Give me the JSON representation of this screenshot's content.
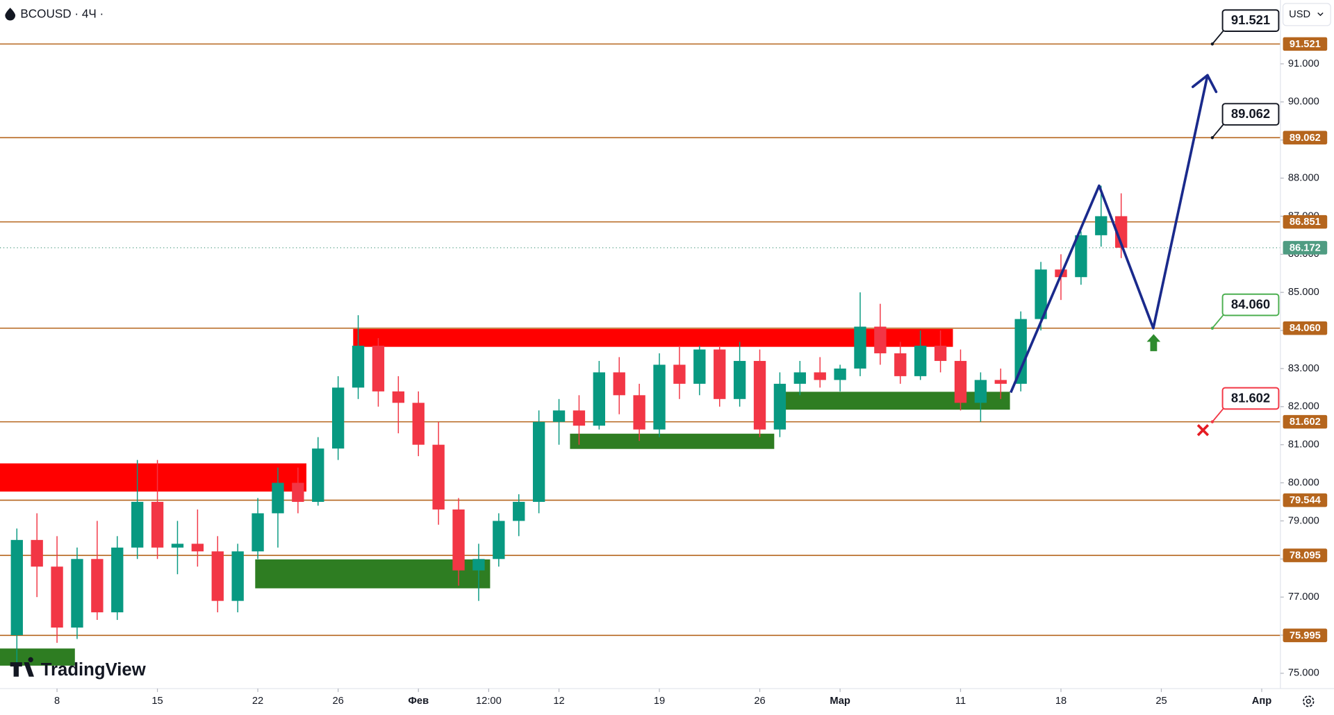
{
  "header": {
    "title": "BCOUSD · 4Ч ·",
    "currency": "USD"
  },
  "watermark": "TradingView",
  "chart_data": {
    "type": "candlestick",
    "x": [
      -2,
      -1,
      0,
      1,
      2,
      3,
      4,
      5,
      6,
      7,
      8,
      9,
      10,
      11,
      12,
      13,
      14,
      15,
      16,
      17,
      18,
      19,
      20,
      21,
      22,
      23,
      24,
      25,
      26,
      27,
      28,
      29,
      30,
      31,
      32,
      33,
      34,
      35,
      36,
      37,
      38,
      39,
      40,
      41,
      42,
      43,
      44,
      45,
      46,
      47,
      48,
      49,
      50,
      51,
      52,
      53
    ],
    "open": [
      76.0,
      78.5,
      77.8,
      76.2,
      78.0,
      76.6,
      78.3,
      79.5,
      78.3,
      78.4,
      78.2,
      76.9,
      78.2,
      79.2,
      80.0,
      79.5,
      80.9,
      82.5,
      83.6,
      82.4,
      82.1,
      81.0,
      79.3,
      77.7,
      78.0,
      79.0,
      79.5,
      81.6,
      81.9,
      81.5,
      82.9,
      82.3,
      81.4,
      83.1,
      82.6,
      83.5,
      82.2,
      83.2,
      81.4,
      82.6,
      82.9,
      82.7,
      83.0,
      84.1,
      83.4,
      82.8,
      83.6,
      83.2,
      82.1,
      82.7,
      82.6,
      84.3,
      85.6,
      85.4,
      86.5,
      87.0
    ],
    "high": [
      78.8,
      79.2,
      78.6,
      78.3,
      79.0,
      78.6,
      80.6,
      80.6,
      79.0,
      79.3,
      78.6,
      78.4,
      79.6,
      80.4,
      80.4,
      81.2,
      82.8,
      84.4,
      83.8,
      82.8,
      82.4,
      81.6,
      79.6,
      78.4,
      79.2,
      79.7,
      81.9,
      82.2,
      82.3,
      83.2,
      83.3,
      82.6,
      83.4,
      83.6,
      83.6,
      83.6,
      83.7,
      83.5,
      82.9,
      83.2,
      83.3,
      83.1,
      85.0,
      84.7,
      83.7,
      84.0,
      84.0,
      83.5,
      82.9,
      83.0,
      84.5,
      85.8,
      86.0,
      86.6,
      87.8,
      87.6
    ],
    "low": [
      75.2,
      77.0,
      75.8,
      75.9,
      76.4,
      76.4,
      78.0,
      78.0,
      77.6,
      77.8,
      76.6,
      76.6,
      78.0,
      78.3,
      79.2,
      79.4,
      80.6,
      82.2,
      82.0,
      81.3,
      80.7,
      78.9,
      77.3,
      76.9,
      77.8,
      78.6,
      79.2,
      81.0,
      81.0,
      81.4,
      81.8,
      81.1,
      81.2,
      82.2,
      82.3,
      82.0,
      82.0,
      81.2,
      81.2,
      82.3,
      82.5,
      82.4,
      82.8,
      83.1,
      82.6,
      82.7,
      82.9,
      81.9,
      81.6,
      82.2,
      82.4,
      84.0,
      84.8,
      85.2,
      86.2,
      85.9
    ],
    "close": [
      78.5,
      77.8,
      76.2,
      78.0,
      76.6,
      78.3,
      79.5,
      78.3,
      78.4,
      78.2,
      76.9,
      78.2,
      79.2,
      80.0,
      79.5,
      80.9,
      82.5,
      83.6,
      82.4,
      82.1,
      81.0,
      79.3,
      77.7,
      78.0,
      79.0,
      79.5,
      81.6,
      81.9,
      81.5,
      82.9,
      82.3,
      81.4,
      83.1,
      82.6,
      83.5,
      82.2,
      83.2,
      81.4,
      82.6,
      82.9,
      82.7,
      83.0,
      84.1,
      83.4,
      82.8,
      83.6,
      83.2,
      82.1,
      82.7,
      82.6,
      84.3,
      85.6,
      85.4,
      86.5,
      87.0,
      86.172
    ],
    "up_color": "#089981",
    "down_color": "#f23645",
    "xlim": [
      -2.84,
      60.93
    ],
    "xticks": [
      {
        "value": 0,
        "label": "8"
      },
      {
        "value": 5,
        "label": "15"
      },
      {
        "value": 10,
        "label": "22"
      },
      {
        "value": 14,
        "label": "26"
      },
      {
        "value": 18,
        "label": "Фев"
      },
      {
        "value": 21.5,
        "label": "12:00"
      },
      {
        "value": 25,
        "label": "12"
      },
      {
        "value": 30,
        "label": "19"
      },
      {
        "value": 35,
        "label": "26"
      },
      {
        "value": 39,
        "label": "Мар"
      },
      {
        "value": 45,
        "label": "11"
      },
      {
        "value": 50,
        "label": "18"
      },
      {
        "value": 55,
        "label": "25"
      },
      {
        "value": 60,
        "label": "Апр"
      }
    ],
    "ylim": [
      74.598,
      92.674
    ],
    "yticks": [
      {
        "value": 75,
        "label": "75.000"
      },
      {
        "value": 76,
        "label": "76.000"
      },
      {
        "value": 77,
        "label": "77.000"
      },
      {
        "value": 78,
        "label": "78.000"
      },
      {
        "value": 79,
        "label": "79.000"
      },
      {
        "value": 80,
        "label": "80.000"
      },
      {
        "value": 81,
        "label": "81.000"
      },
      {
        "value": 82,
        "label": "82.000"
      },
      {
        "value": 83,
        "label": "83.000"
      },
      {
        "value": 84,
        "label": "84.000"
      },
      {
        "value": 85,
        "label": "85.000"
      },
      {
        "value": 86,
        "label": "86.000"
      },
      {
        "value": 87,
        "label": "87.000"
      },
      {
        "value": 88,
        "label": "88.000"
      },
      {
        "value": 89,
        "label": "89.000"
      },
      {
        "value": 90,
        "label": "90.000"
      },
      {
        "value": 91,
        "label": "91.000"
      }
    ],
    "grid": false,
    "levels": [
      91.521,
      89.062,
      86.851,
      {
        "value": 84.06,
        "label": "84.060"
      },
      81.602,
      79.544,
      78.095,
      75.995
    ],
    "level_color": "#b5651d",
    "last_price": 86.172,
    "last_price_color": "#4f9c82",
    "zones": [
      {
        "x": [
          -2.84,
          12.42
        ],
        "range": [
          79.77,
          80.51
        ],
        "color": "#ff0000"
      },
      {
        "x": [
          14.75,
          44.62
        ],
        "range": [
          83.57,
          84.04
        ],
        "color": "#ff0000"
      },
      {
        "x": [
          -2.84,
          0.89
        ],
        "range": [
          75.2,
          75.65
        ],
        "color": "#2e7d22"
      },
      {
        "x": [
          9.87,
          21.57
        ],
        "range": [
          77.23,
          77.99
        ],
        "color": "#2e7d22"
      },
      {
        "x": [
          25.55,
          35.72
        ],
        "range": [
          80.89,
          81.29
        ],
        "color": "#2e7d22"
      },
      {
        "x": [
          36.23,
          47.46
        ],
        "range": [
          81.92,
          82.39
        ],
        "color": "#2e7d22"
      }
    ],
    "forecast": {
      "x": [
        47.5,
        51.9,
        54.6,
        57.3
      ],
      "values": [
        82.37,
        87.8,
        84.06,
        90.7
      ],
      "color": "#1a2a8c"
    },
    "callouts": [
      {
        "value": 91.521,
        "color": "#131722"
      },
      {
        "value": 89.062,
        "color": "#131722"
      },
      {
        "value": 84.06,
        "label": "84.060",
        "color": "#4caf50"
      },
      {
        "value": 81.602,
        "color": "#f23645"
      }
    ]
  }
}
